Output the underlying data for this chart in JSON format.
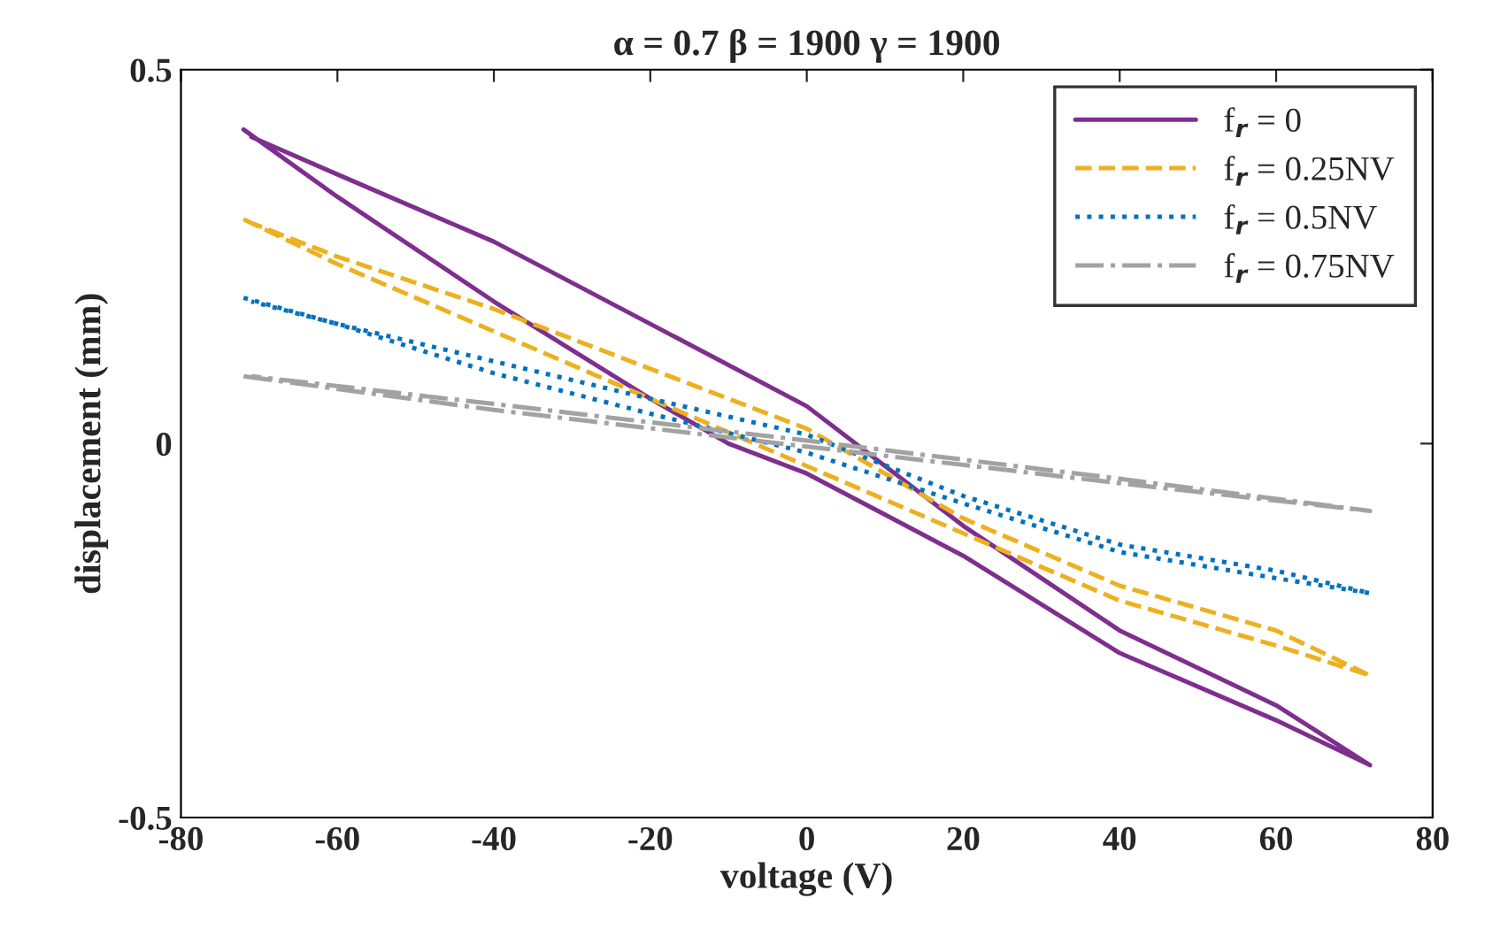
{
  "chart_data": {
    "type": "line",
    "title": "α = 0.7 β = 1900 γ = 1900",
    "xlabel": "voltage (V)",
    "ylabel": "displacement (mm)",
    "xlim": [
      -80,
      80
    ],
    "xticks": [
      -80,
      -60,
      -40,
      -20,
      0,
      20,
      40,
      60,
      80
    ],
    "ylim": [
      -0.5,
      0.5
    ],
    "yticks": [
      -0.5,
      0,
      0.5
    ],
    "grid": false,
    "legend": "top right",
    "series": [
      {
        "name": "f$_{r}$ = 0",
        "color": "#7e2f8e",
        "line_style": "solid",
        "x": [
          -72,
          -60,
          -40,
          -20,
          -10,
          0,
          20,
          40,
          60,
          72,
          60,
          40,
          20,
          10,
          0,
          -20,
          -40,
          -60,
          -71
        ],
        "values": [
          0.42,
          0.33,
          0.19,
          0.06,
          0.0,
          -0.04,
          -0.15,
          -0.28,
          -0.37,
          -0.43,
          -0.35,
          -0.25,
          -0.11,
          -0.03,
          0.05,
          0.16,
          0.27,
          0.36,
          0.41
        ]
      },
      {
        "name": "f$_{r}$ = 0.25NV",
        "color": "#edb120",
        "line_style": "dashed",
        "x": [
          -72,
          -60,
          -40,
          -20,
          0,
          20,
          40,
          60,
          72,
          60,
          40,
          20,
          0,
          -20,
          -40,
          -60,
          -71
        ],
        "values": [
          0.3,
          0.24,
          0.15,
          0.06,
          -0.03,
          -0.12,
          -0.21,
          -0.27,
          -0.31,
          -0.25,
          -0.19,
          -0.1,
          0.02,
          0.1,
          0.18,
          0.25,
          0.295
        ]
      },
      {
        "name": "f$_{r}$ = 0.5NV",
        "color": "#0072bd",
        "line_style": "dotted",
        "x": [
          -72,
          -60,
          -40,
          -20,
          0,
          20,
          40,
          60,
          72,
          60,
          40,
          20,
          0,
          -20,
          -40,
          -60,
          -71
        ],
        "values": [
          0.195,
          0.16,
          0.094,
          0.04,
          -0.012,
          -0.08,
          -0.145,
          -0.18,
          -0.2,
          -0.17,
          -0.135,
          -0.07,
          0.012,
          0.06,
          0.11,
          0.16,
          0.19
        ]
      },
      {
        "name": "f$_{r}$ = 0.75NV",
        "color": "#a2a2a2",
        "line_style": "dashdot",
        "x": [
          -72,
          -40,
          0,
          40,
          72,
          40,
          0,
          -40,
          -71
        ],
        "values": [
          0.09,
          0.045,
          -0.004,
          -0.053,
          -0.09,
          -0.047,
          0.004,
          0.053,
          0.09
        ]
      }
    ]
  }
}
